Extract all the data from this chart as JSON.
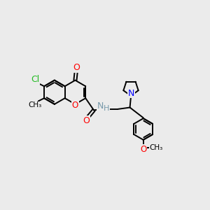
{
  "bg_color": "#ebebeb",
  "bond_color": "#000000",
  "lw": 1.4,
  "figsize": [
    3.0,
    3.0
  ],
  "dpi": 100,
  "xlim": [
    0,
    10
  ],
  "ylim": [
    0,
    10
  ]
}
